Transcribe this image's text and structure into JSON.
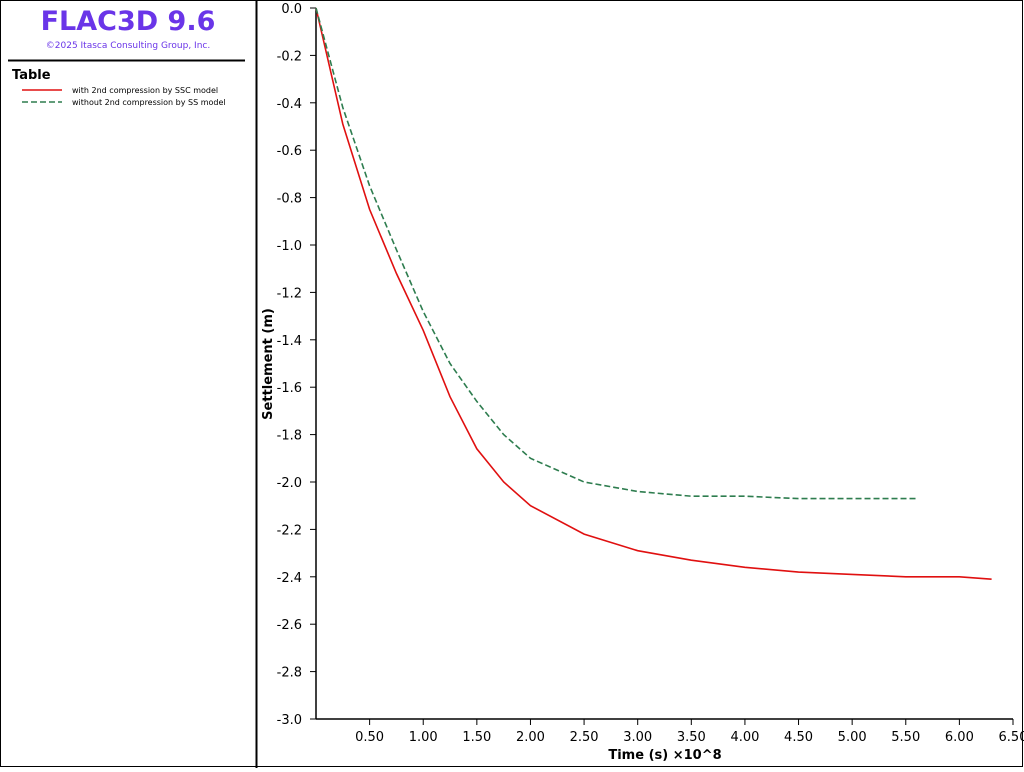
{
  "header": {
    "title": "FLAC3D 9.6",
    "copyright": "©2025 Itasca Consulting Group, Inc."
  },
  "chart_data": {
    "type": "line",
    "legend_title": "Table",
    "x_label": "Time (s) ×10^8",
    "y_label": "Settlement (m)",
    "xlim": [
      0,
      6.5
    ],
    "xticks": [
      {
        "value": 0.5,
        "label": "0.50"
      },
      {
        "value": 1,
        "label": "1.00"
      },
      {
        "value": 1.5,
        "label": "1.50"
      },
      {
        "value": 2,
        "label": "2.00"
      },
      {
        "value": 2.5,
        "label": "2.50"
      },
      {
        "value": 3,
        "label": "3.00"
      },
      {
        "value": 3.5,
        "label": "3.50"
      },
      {
        "value": 4,
        "label": "4.00"
      },
      {
        "value": 4.5,
        "label": "4.50"
      },
      {
        "value": 5,
        "label": "5.00"
      },
      {
        "value": 5.5,
        "label": "5.50"
      },
      {
        "value": 6,
        "label": "6.00"
      },
      {
        "value": 6.5,
        "label": "6.50"
      }
    ],
    "ylim": [
      -3,
      0
    ],
    "yticks": [
      {
        "value": 0,
        "label": "0.0"
      },
      {
        "value": -0.2,
        "label": "-0.2"
      },
      {
        "value": -0.4,
        "label": "-0.4"
      },
      {
        "value": -0.6,
        "label": "-0.6"
      },
      {
        "value": -0.8,
        "label": "-0.8"
      },
      {
        "value": -1,
        "label": "-1.0"
      },
      {
        "value": -1.2,
        "label": "-1.2"
      },
      {
        "value": -1.4,
        "label": "-1.4"
      },
      {
        "value": -1.6,
        "label": "-1.6"
      },
      {
        "value": -1.8,
        "label": "-1.8"
      },
      {
        "value": -2,
        "label": "-2.0"
      },
      {
        "value": -2.2,
        "label": "-2.2"
      },
      {
        "value": -2.4,
        "label": "-2.4"
      },
      {
        "value": -2.6,
        "label": "-2.6"
      },
      {
        "value": -2.8,
        "label": "-2.8"
      },
      {
        "value": -3,
        "label": "-3.0"
      }
    ],
    "series": [
      {
        "name": "with 2nd compression by SSC model",
        "color": "#e01010",
        "dashed": false,
        "x": [
          0,
          0.25,
          0.5,
          0.75,
          1,
          1.25,
          1.5,
          1.75,
          2,
          2.5,
          3,
          3.5,
          4,
          4.5,
          5,
          5.5,
          6,
          6.3
        ],
        "values": [
          0,
          -0.49,
          -0.85,
          -1.12,
          -1.36,
          -1.64,
          -1.86,
          -2.0,
          -2.1,
          -2.22,
          -2.29,
          -2.33,
          -2.36,
          -2.38,
          -2.39,
          -2.4,
          -2.4,
          -2.41
        ]
      },
      {
        "name": "without 2nd compression by SS model",
        "color": "#2e7d4f",
        "dashed": true,
        "x": [
          0,
          0.25,
          0.5,
          0.75,
          1,
          1.25,
          1.5,
          1.75,
          2,
          2.5,
          3,
          3.5,
          4,
          4.5,
          5,
          5.6
        ],
        "values": [
          0,
          -0.42,
          -0.75,
          -1.02,
          -1.28,
          -1.5,
          -1.66,
          -1.8,
          -1.9,
          -2.0,
          -2.04,
          -2.06,
          -2.06,
          -2.07,
          -2.07,
          -2.07
        ]
      }
    ]
  }
}
